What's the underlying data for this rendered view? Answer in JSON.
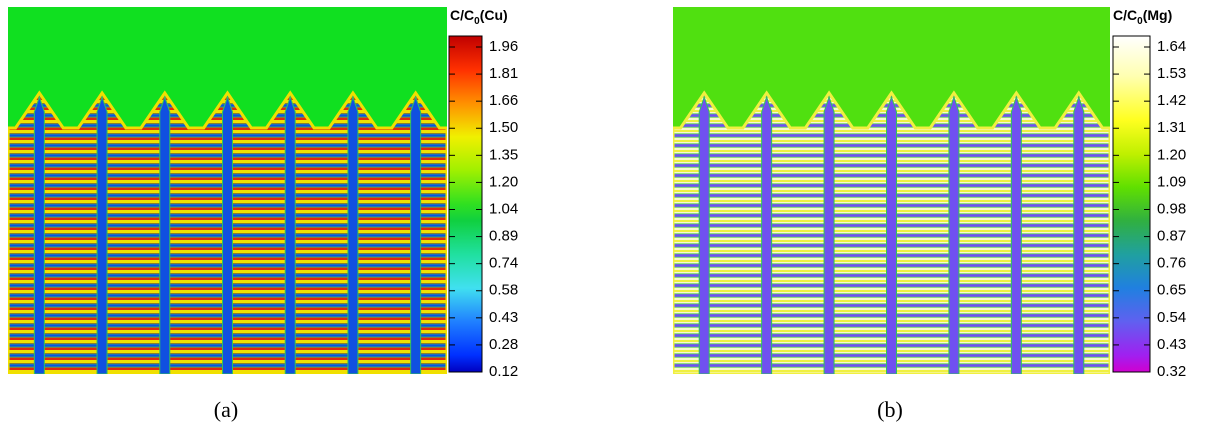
{
  "panels": [
    {
      "caption": "(a)",
      "legend": {
        "title": {
          "main": "C/C",
          "sub": "0",
          "element": "(Cu)"
        },
        "levels": [
          "1.96",
          "1.81",
          "1.66",
          "1.50",
          "1.35",
          "1.20",
          "1.04",
          "0.89",
          "0.74",
          "0.58",
          "0.43",
          "0.28",
          "0.12"
        ]
      }
    },
    {
      "caption": "(b)",
      "legend": {
        "title": {
          "main": "C/C",
          "sub": "0",
          "element": "(Mg)"
        },
        "levels": [
          "1.64",
          "1.53",
          "1.42",
          "1.31",
          "1.20",
          "1.09",
          "0.98",
          "0.87",
          "0.76",
          "0.65",
          "0.54",
          "0.43",
          "0.32"
        ]
      }
    }
  ]
}
